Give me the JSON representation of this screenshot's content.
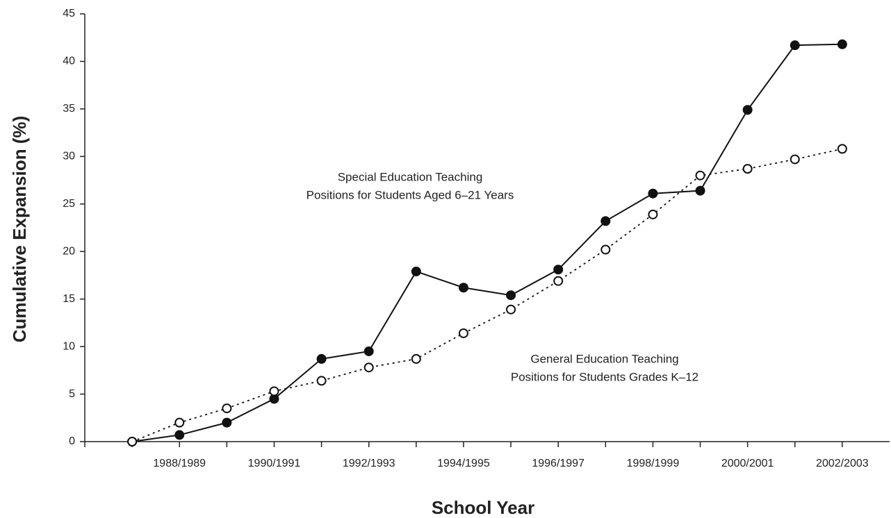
{
  "chart_data": {
    "type": "line",
    "x_label": "School Year",
    "y_label": "Cumulative Expansion (%)",
    "categories": [
      null,
      "1988/1989",
      null,
      "1990/1991",
      null,
      "1992/1993",
      null,
      "1994/1995",
      null,
      "1996/1997",
      null,
      "1998/1999",
      null,
      "2000/2001",
      null,
      "2002/2003"
    ],
    "series": [
      {
        "color": "#111111",
        "dash": "solid",
        "marker": "filled",
        "values": [
          0,
          0.7,
          2.0,
          4.5,
          8.7,
          9.5,
          17.9,
          16.2,
          15.4,
          18.1,
          23.2,
          26.1,
          26.4,
          34.9,
          41.7,
          41.8
        ]
      },
      {
        "color": "#111111",
        "dash": "dotted",
        "marker": "open",
        "values": [
          0,
          2.0,
          3.5,
          5.3,
          6.4,
          7.8,
          8.7,
          11.4,
          13.9,
          16.9,
          20.2,
          23.9,
          28.0,
          28.7,
          29.7,
          30.8
        ]
      }
    ],
    "annotations": [
      [
        "Special Education Teaching",
        "Positions for Students Aged 6–21 Years"
      ],
      [
        "General Education Teaching",
        "Positions for Students Grades K–12"
      ]
    ],
    "ylim": [
      0,
      45
    ],
    "yticks": [
      0,
      5,
      10,
      15,
      20,
      25,
      30,
      35,
      40,
      45
    ],
    "grid": false
  }
}
